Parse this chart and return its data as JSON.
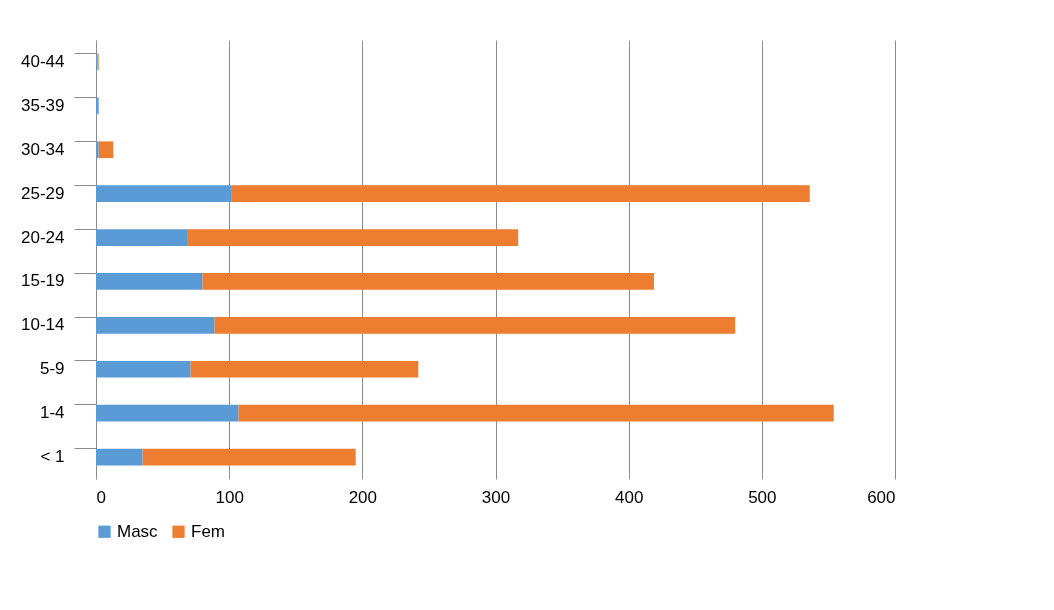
{
  "chart_data": {
    "type": "bar",
    "orientation": "horizontal",
    "stacked": true,
    "categories": [
      "40-44",
      "35-39",
      "30-34",
      "25-29",
      "20-24",
      "15-19",
      "10-14",
      "5-9",
      "1-4",
      "< 1"
    ],
    "series": [
      {
        "name": "Masc",
        "color": "#5b9bd5",
        "values": [
          1,
          2,
          2,
          102,
          69,
          80,
          89,
          71,
          107,
          35
        ]
      },
      {
        "name": "Fem",
        "color": "#ed7d31",
        "values": [
          1,
          0,
          11,
          434,
          248,
          339,
          391,
          171,
          447,
          160
        ]
      }
    ],
    "xlim": [
      0,
      600
    ],
    "xticks": [
      0,
      100,
      200,
      300,
      400,
      500,
      600
    ],
    "grid": "x",
    "legend": "bottom"
  }
}
